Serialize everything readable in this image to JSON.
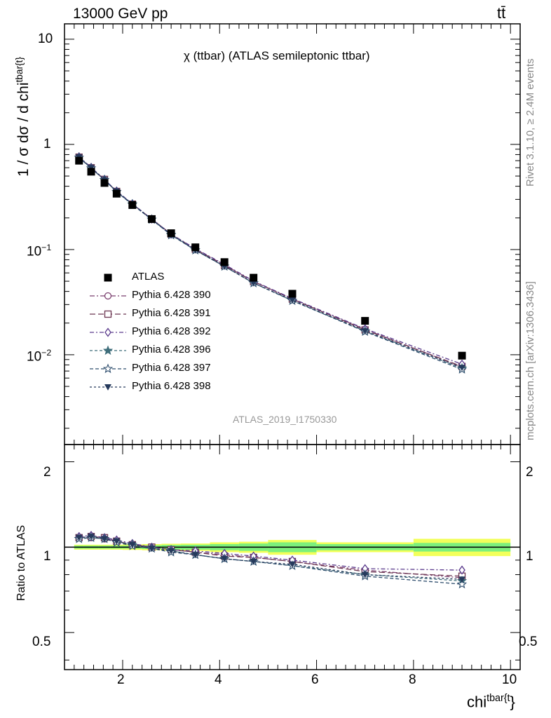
{
  "header": {
    "beam": "13000 GeV pp",
    "process": "tt̄"
  },
  "main_title": "χ (ttbar) (ATLAS semileptonic ttbar)",
  "watermark": "ATLAS_2019_I1750330",
  "side_labels": {
    "rivet": "Rivet 3.1.10, ≥ 2.4M events",
    "mcplots": "mcplots.cern.ch [arXiv:1306.3436]"
  },
  "axes": {
    "top_ylabel": "1 / σ dσ / d chi",
    "top_ylabel_sup": "tbar{t}",
    "bottom_ylabel": "Ratio to ATLAS",
    "xlabel": "chi",
    "xlabel_sup": "tbar{t",
    "xlabel_suffix": "}",
    "top_ytick_labels": [
      {
        "base": "10",
        "exp": ""
      },
      {
        "base": "1",
        "exp": ""
      },
      {
        "base": "10",
        "exp": "−1"
      },
      {
        "base": "10",
        "exp": "−2"
      }
    ],
    "ratio_ytick_labels": [
      "2",
      "1",
      "0.5"
    ],
    "xtick_labels": [
      "2",
      "4",
      "6",
      "8",
      "10"
    ]
  },
  "colors": {
    "data": "#000000",
    "p390": "#7b3f6e",
    "p391": "#6b3550",
    "p392": "#5a3a8c",
    "p396": "#3f6e7b",
    "p397": "#2f4e6e",
    "p398": "#263a5c",
    "band_inner": "#7cf07c",
    "band_outer": "#f2ff5a"
  },
  "chart_data": {
    "type": "line",
    "xlim": [
      0.8,
      10.2
    ],
    "top_ylim": [
      0.0014,
      14
    ],
    "top_yscale": "log",
    "ratio_ylim": [
      0.37,
      2.3
    ],
    "ratio_yscale": "log",
    "x_edges": [
      1.0,
      1.2,
      1.5,
      1.75,
      2.0,
      2.4,
      2.8,
      3.2,
      3.8,
      4.4,
      5.0,
      6.0,
      8.0,
      10.0
    ],
    "x": [
      1.1,
      1.35,
      1.625,
      1.875,
      2.2,
      2.6,
      3.0,
      3.5,
      4.1,
      4.7,
      5.5,
      7.0,
      9.0
    ],
    "series": [
      {
        "name": "ATLAS",
        "key": "p_data",
        "marker": "square",
        "values": [
          0.7,
          0.55,
          0.43,
          0.34,
          0.265,
          0.195,
          0.143,
          0.105,
          0.076,
          0.054,
          0.038,
          0.021,
          0.0098
        ],
        "ratio": [
          1,
          1,
          1,
          1,
          1,
          1,
          1,
          1,
          1,
          1,
          1,
          1,
          1
        ]
      },
      {
        "name": "Pythia 6.428 390",
        "key": "p390",
        "marker": "circle-open",
        "dash": "7,3,2,3",
        "ratio": [
          1.08,
          1.08,
          1.07,
          1.05,
          1.02,
          1.0,
          0.98,
          0.96,
          0.94,
          0.92,
          0.89,
          0.83,
          0.78
        ]
      },
      {
        "name": "Pythia 6.428 391",
        "key": "p391",
        "marker": "square-open",
        "dash": "8,4",
        "ratio": [
          1.08,
          1.09,
          1.08,
          1.05,
          1.02,
          1.0,
          0.98,
          0.96,
          0.93,
          0.92,
          0.89,
          0.82,
          0.79
        ]
      },
      {
        "name": "Pythia 6.428 392",
        "key": "p392",
        "marker": "diamond-open",
        "dash": "6,3,2,3",
        "ratio": [
          1.09,
          1.1,
          1.08,
          1.06,
          1.03,
          1.0,
          0.98,
          0.97,
          0.95,
          0.93,
          0.9,
          0.84,
          0.83
        ]
      },
      {
        "name": "Pythia 6.428 396",
        "key": "p396",
        "marker": "star",
        "dash": "4,3",
        "ratio": [
          1.07,
          1.08,
          1.07,
          1.04,
          1.02,
          0.99,
          0.97,
          0.94,
          0.91,
          0.89,
          0.86,
          0.8,
          0.76
        ]
      },
      {
        "name": "Pythia 6.428 397",
        "key": "p397",
        "marker": "star-open",
        "dash": "5,3",
        "ratio": [
          1.07,
          1.08,
          1.07,
          1.04,
          1.01,
          0.99,
          0.96,
          0.94,
          0.91,
          0.89,
          0.86,
          0.79,
          0.74
        ]
      },
      {
        "name": "Pythia 6.428 398",
        "key": "p398",
        "marker": "triangle-down",
        "dash": "3,3",
        "ratio": [
          1.08,
          1.09,
          1.07,
          1.05,
          1.02,
          0.99,
          0.97,
          0.94,
          0.91,
          0.89,
          0.87,
          0.8,
          0.77
        ]
      }
    ],
    "uncertainty_band": {
      "inner": [
        0.012,
        0.012,
        0.012,
        0.012,
        0.012,
        0.015,
        0.018,
        0.02,
        0.025,
        0.03,
        0.04,
        0.025,
        0.035
      ],
      "outer": [
        0.02,
        0.02,
        0.02,
        0.02,
        0.022,
        0.025,
        0.028,
        0.03,
        0.04,
        0.045,
        0.06,
        0.04,
        0.07
      ]
    }
  }
}
